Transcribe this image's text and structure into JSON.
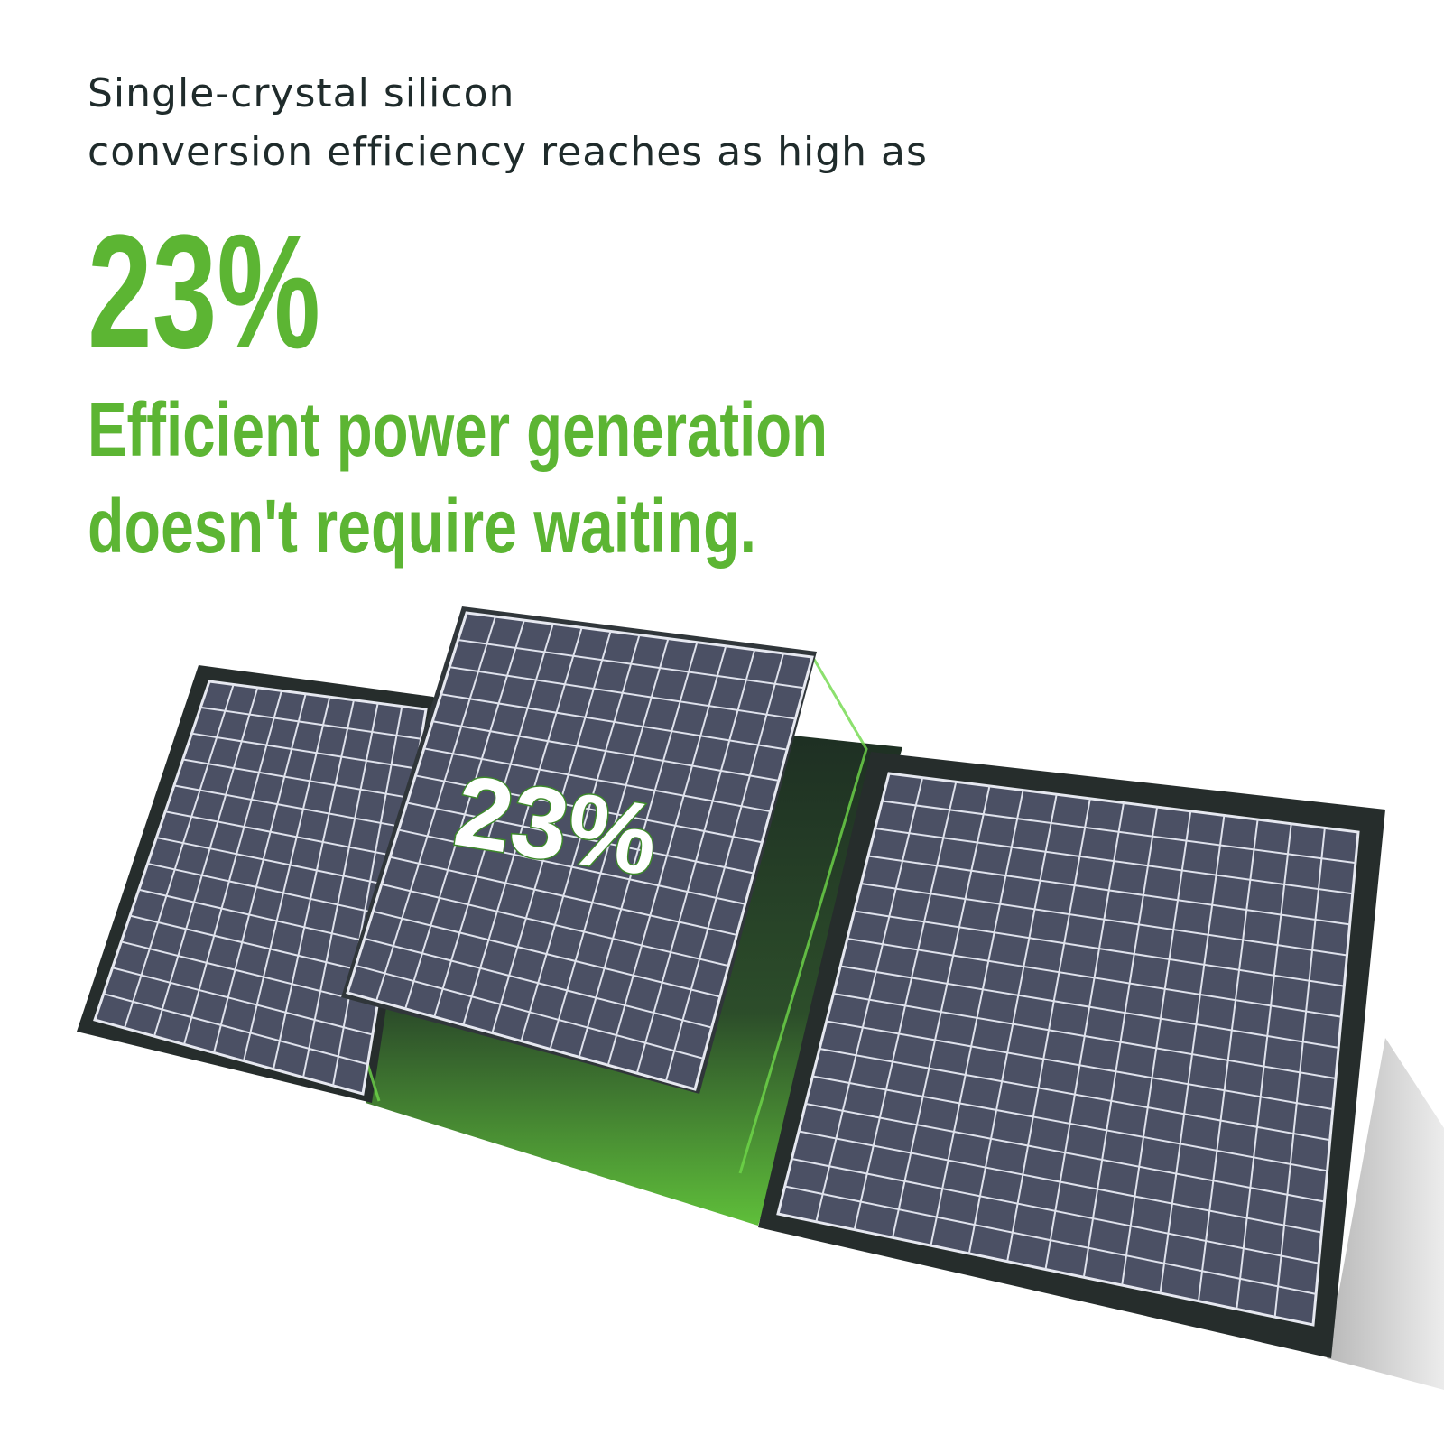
{
  "heading": {
    "line1": "Single-crystal silicon",
    "line2": "conversion efficiency reaches as high as"
  },
  "highlight": "23%",
  "tagline": {
    "line1": "Efficient power generation",
    "line2": "doesn't require waiting."
  },
  "panel_label": "23%"
}
